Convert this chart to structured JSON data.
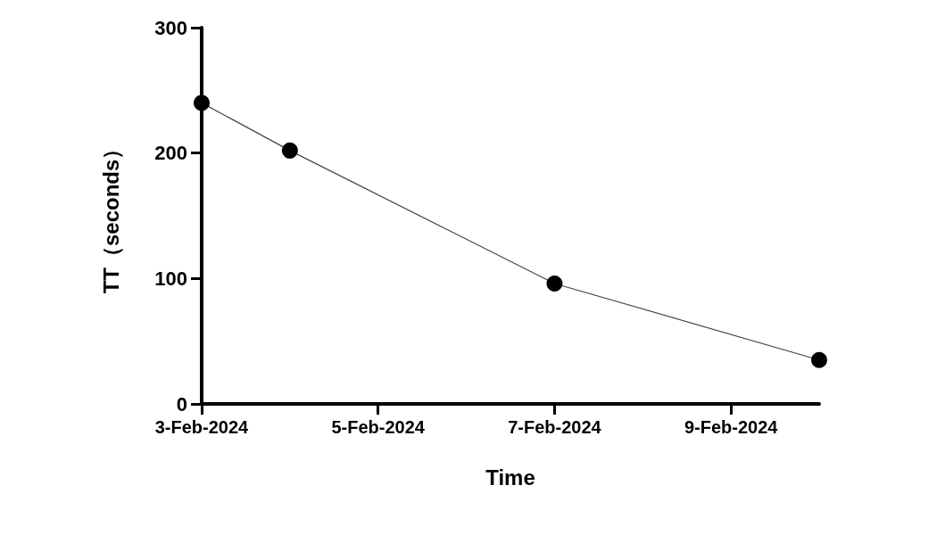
{
  "chart_data": {
    "type": "line",
    "xlabel": "Time",
    "ylabel": "TT（seconds）",
    "x": [
      "2024-02-03",
      "2024-02-04",
      "2024-02-07",
      "2024-02-10"
    ],
    "series": [
      {
        "color": "#000000",
        "values": [
          240,
          202,
          96,
          35
        ]
      }
    ],
    "xlim": [
      "2024-02-03",
      "2024-02-10"
    ],
    "xticks": [
      {
        "value": "2024-02-03",
        "label": "3-Feb-2024"
      },
      {
        "value": "2024-02-05",
        "label": "5-Feb-2024"
      },
      {
        "value": "2024-02-07",
        "label": "7-Feb-2024"
      },
      {
        "value": "2024-02-09",
        "label": "9-Feb-2024"
      }
    ],
    "ylim": [
      0,
      300
    ],
    "yticks": [
      0,
      100,
      200,
      300
    ],
    "grid": false,
    "marker": "circle",
    "line_style": "solid"
  }
}
